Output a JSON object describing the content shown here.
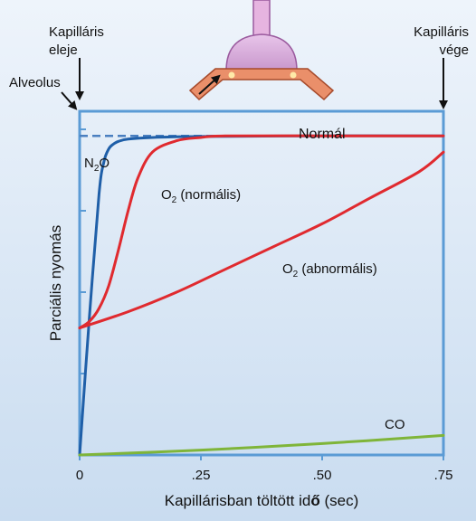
{
  "chart_data": {
    "type": "line",
    "title": "",
    "xlabel_main": "Kapillárisban töltött id",
    "xlabel_bold": "ő",
    "xlabel_tail": " (sec)",
    "ylabel": "Parciális nyomás",
    "xlim": [
      0,
      0.75
    ],
    "ylim": [
      0,
      1
    ],
    "x_ticks": [
      {
        "value": 0,
        "label": "0"
      },
      {
        "value": 0.25,
        "label": ".25"
      },
      {
        "value": 0.5,
        "label": ".50"
      },
      {
        "value": 0.75,
        "label": ".75"
      }
    ],
    "y_ticks": [
      0,
      0.25,
      0.5,
      0.75,
      1.0
    ],
    "alveolar_level": 0.98,
    "annotations": {
      "start": {
        "line1": "Kapilláris",
        "line2": "eleje"
      },
      "end": {
        "line1": "Kapilláris",
        "line2": "vége"
      },
      "alveolus": "Alveolus"
    },
    "series": [
      {
        "name": "N2O",
        "label_main": "N",
        "label_sub": "2",
        "label_tail": "O",
        "color": "#1f5fa8",
        "x": [
          0,
          0.02,
          0.04,
          0.05,
          0.06,
          0.07,
          0.08,
          0.1,
          0.15,
          0.25,
          0.5,
          0.75
        ],
        "y": [
          0,
          0.42,
          0.8,
          0.9,
          0.94,
          0.955,
          0.963,
          0.97,
          0.975,
          0.978,
          0.98,
          0.98
        ]
      },
      {
        "name": "O2 (normális)",
        "label_main": "O",
        "label_sub": "2",
        "label_tail": " (normális)",
        "color": "#e02a2f",
        "x": [
          0,
          0.02,
          0.04,
          0.06,
          0.08,
          0.1,
          0.12,
          0.15,
          0.2,
          0.25,
          0.3,
          0.5,
          0.75
        ],
        "y": [
          0.39,
          0.41,
          0.45,
          0.52,
          0.63,
          0.75,
          0.85,
          0.93,
          0.965,
          0.975,
          0.98,
          0.98,
          0.98
        ]
      },
      {
        "name": "O2 (abnormális)",
        "label_main": "O",
        "label_sub": "2",
        "label_tail": " (abnormális)",
        "color": "#e02a2f",
        "x": [
          0,
          0.1,
          0.2,
          0.3,
          0.4,
          0.5,
          0.6,
          0.7,
          0.75
        ],
        "y": [
          0.39,
          0.44,
          0.5,
          0.57,
          0.64,
          0.71,
          0.79,
          0.87,
          0.93
        ]
      },
      {
        "name": "CO",
        "label_main": "CO",
        "label_sub": "",
        "label_tail": "",
        "color": "#7fb539",
        "x": [
          0,
          0.25,
          0.5,
          0.75
        ],
        "y": [
          0,
          0.015,
          0.035,
          0.06
        ]
      }
    ],
    "normal_label": "Normál"
  },
  "colors": {
    "axis": "#5b9bd5",
    "dashed": "#4a7fc0",
    "capillary_bulb": "#d9a6d9",
    "capillary_tube": "#e98a63",
    "stem": "#e6b4e0"
  }
}
